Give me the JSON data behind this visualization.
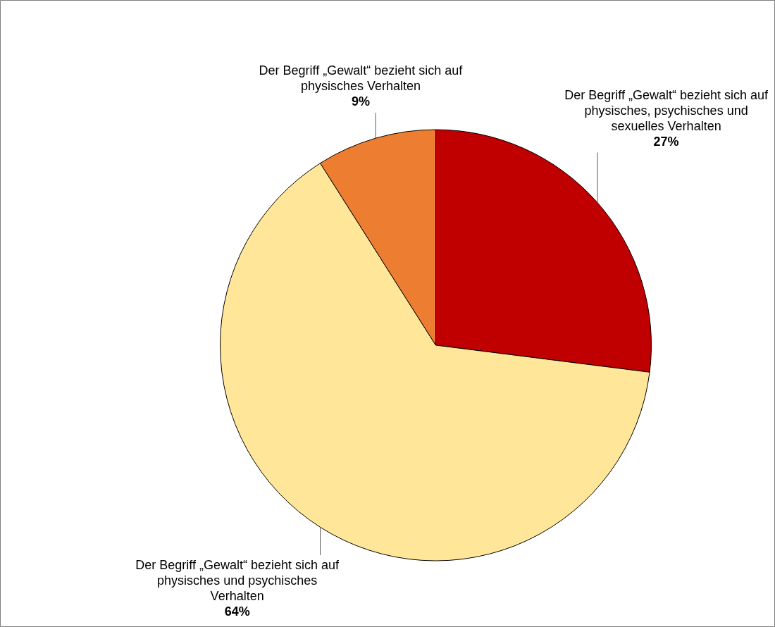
{
  "chart_data": {
    "type": "pie",
    "categories": [
      "Der Begriff „Gewalt“ bezieht sich auf physisches, psychisches und sexuelles Verhalten",
      "Der Begriff „Gewalt“ bezieht sich auf physisches und psychisches Verhalten",
      "Der Begriff „Gewalt“ bezieht sich auf physisches Verhalten"
    ],
    "values": [
      27,
      64,
      9
    ],
    "colors": [
      "#c00000",
      "#ffe699",
      "#ed7d31"
    ],
    "value_labels": [
      "27%",
      "64%",
      "9%"
    ],
    "legend": false
  }
}
